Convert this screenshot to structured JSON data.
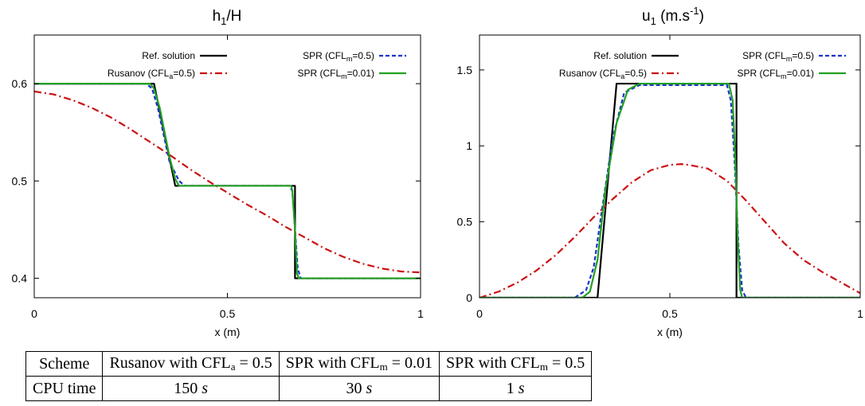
{
  "chart_data": [
    {
      "type": "line",
      "title": "h1/H",
      "title_main": "h",
      "title_sub": "1",
      "title_rest": "/H",
      "xlabel": "x (m)",
      "ylabel": "",
      "xlim": [
        0,
        1
      ],
      "ylim": [
        0.38,
        0.65
      ],
      "xticks": [
        0,
        0.5,
        1
      ],
      "xtick_labels": [
        "0",
        "0.5",
        "1"
      ],
      "yticks": [
        0.4,
        0.5,
        0.6
      ],
      "ytick_labels": [
        "0.4",
        "0.5",
        "0.6"
      ],
      "grid": false,
      "legend_position": "top",
      "series": [
        {
          "name": "Ref. solution",
          "legend_main": "Ref. solution",
          "legend_sub": "",
          "legend_rest": "",
          "color": "#000000",
          "dash": "",
          "x": [
            0,
            0.31,
            0.365,
            0.675,
            0.675,
            1
          ],
          "y": [
            0.6,
            0.6,
            0.495,
            0.495,
            0.4,
            0.4
          ]
        },
        {
          "name": "Rusanov (CFLa=0.5)",
          "legend_main": "Rusanov (CFL",
          "legend_sub": "a",
          "legend_rest": "=0.5)",
          "color": "#cc1111",
          "dash": "9,4,2,4",
          "x": [
            0,
            0.05,
            0.1,
            0.15,
            0.2,
            0.25,
            0.3,
            0.35,
            0.4,
            0.45,
            0.5,
            0.55,
            0.6,
            0.65,
            0.7,
            0.75,
            0.8,
            0.85,
            0.9,
            0.95,
            1
          ],
          "y": [
            0.592,
            0.589,
            0.583,
            0.575,
            0.565,
            0.553,
            0.54,
            0.527,
            0.513,
            0.5,
            0.488,
            0.476,
            0.465,
            0.453,
            0.442,
            0.431,
            0.422,
            0.415,
            0.41,
            0.407,
            0.406
          ]
        },
        {
          "name": "SPR (CFLm=0.5)",
          "legend_main": "SPR (CFL",
          "legend_sub": "m",
          "legend_rest": "=0.5)",
          "color": "#1a33cc",
          "dash": "5,3",
          "x": [
            0,
            0.29,
            0.305,
            0.32,
            0.35,
            0.375,
            0.39,
            0.66,
            0.668,
            0.675,
            0.682,
            0.69,
            1
          ],
          "y": [
            0.6,
            0.6,
            0.595,
            0.575,
            0.52,
            0.5,
            0.495,
            0.495,
            0.49,
            0.45,
            0.41,
            0.4,
            0.4
          ]
        },
        {
          "name": "SPR (CFLm=0.01)",
          "legend_main": "SPR (CFL",
          "legend_sub": "m",
          "legend_rest": "=0.01)",
          "color": "#22a022",
          "dash": "",
          "x": [
            0,
            0.3,
            0.31,
            0.325,
            0.35,
            0.365,
            0.375,
            0.665,
            0.668,
            0.675,
            0.68,
            0.685,
            1
          ],
          "y": [
            0.6,
            0.6,
            0.595,
            0.575,
            0.525,
            0.502,
            0.495,
            0.495,
            0.49,
            0.45,
            0.405,
            0.4,
            0.4
          ]
        }
      ]
    },
    {
      "type": "line",
      "title": "u1 (m.s-1)",
      "title_main": "u",
      "title_sub": "1",
      "title_rest": " (m.s",
      "title_sup": "-1",
      "title_end": ")",
      "xlabel": "x (m)",
      "ylabel": "",
      "xlim": [
        0,
        1
      ],
      "ylim": [
        0,
        1.73
      ],
      "xticks": [
        0,
        0.5,
        1
      ],
      "xtick_labels": [
        "0",
        "0.5",
        "1"
      ],
      "yticks": [
        0,
        0.5,
        1,
        1.5
      ],
      "ytick_labels": [
        "0",
        "0.5",
        "1",
        "1.5"
      ],
      "grid": false,
      "legend_position": "top",
      "series": [
        {
          "name": "Ref. solution",
          "legend_main": "Ref. solution",
          "legend_sub": "",
          "legend_rest": "",
          "color": "#000000",
          "dash": "",
          "x": [
            0,
            0.31,
            0.36,
            0.675,
            0.675,
            1
          ],
          "y": [
            0,
            0,
            1.41,
            1.41,
            0,
            0
          ]
        },
        {
          "name": "Rusanov (CFLa=0.5)",
          "legend_main": "Rusanov (CFL",
          "legend_sub": "a",
          "legend_rest": "=0.5)",
          "color": "#cc1111",
          "dash": "9,4,2,4",
          "x": [
            0,
            0.05,
            0.1,
            0.15,
            0.2,
            0.25,
            0.3,
            0.35,
            0.4,
            0.45,
            0.5,
            0.53,
            0.55,
            0.6,
            0.65,
            0.7,
            0.75,
            0.8,
            0.85,
            0.9,
            0.95,
            1
          ],
          "y": [
            0,
            0.04,
            0.1,
            0.18,
            0.28,
            0.4,
            0.53,
            0.65,
            0.76,
            0.84,
            0.875,
            0.88,
            0.875,
            0.85,
            0.77,
            0.64,
            0.5,
            0.36,
            0.25,
            0.17,
            0.1,
            0.03
          ]
        },
        {
          "name": "SPR (CFLm=0.5)",
          "legend_main": "SPR (CFL",
          "legend_sub": "m",
          "legend_rest": "=0.5)",
          "color": "#1a33cc",
          "dash": "5,3",
          "x": [
            0,
            0.25,
            0.28,
            0.3,
            0.32,
            0.35,
            0.38,
            0.42,
            0.65,
            0.66,
            0.67,
            0.68,
            0.69,
            0.7,
            1
          ],
          "y": [
            0,
            0,
            0.05,
            0.2,
            0.55,
            1.05,
            1.35,
            1.4,
            1.4,
            1.3,
            0.9,
            0.35,
            0.05,
            0,
            0
          ]
        },
        {
          "name": "SPR (CFLm=0.01)",
          "legend_main": "SPR (CFL",
          "legend_sub": "m",
          "legend_rest": "=0.01)",
          "color": "#22a022",
          "dash": "",
          "x": [
            0,
            0.27,
            0.29,
            0.31,
            0.33,
            0.36,
            0.39,
            0.42,
            0.655,
            0.665,
            0.672,
            0.678,
            0.685,
            0.69,
            1
          ],
          "y": [
            0,
            0,
            0.04,
            0.25,
            0.7,
            1.15,
            1.37,
            1.41,
            1.41,
            1.3,
            0.9,
            0.4,
            0.05,
            0,
            0
          ]
        }
      ]
    }
  ],
  "table": {
    "row_labels": [
      "Scheme",
      "CPU time"
    ],
    "columns": [
      {
        "scheme_pre": "Rusanov with CFL",
        "scheme_sub": "a",
        "scheme_post": " = 0.5",
        "time_value": "150",
        "time_unit": "s"
      },
      {
        "scheme_pre": "SPR with CFL",
        "scheme_sub": "m",
        "scheme_post": " = 0.01",
        "time_value": "30",
        "time_unit": "s"
      },
      {
        "scheme_pre": "SPR with CFL",
        "scheme_sub": "m",
        "scheme_post": " = 0.5",
        "time_value": "1",
        "time_unit": "s"
      }
    ]
  }
}
